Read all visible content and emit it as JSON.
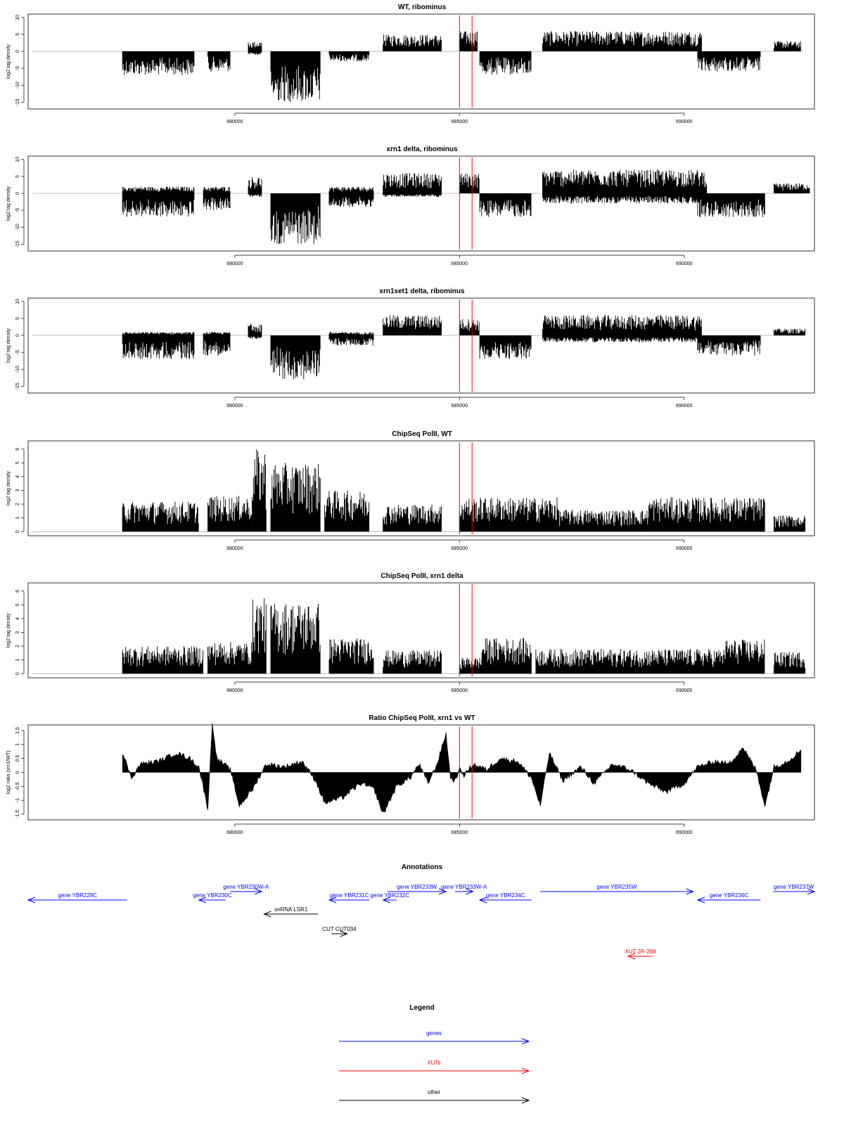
{
  "chart_data": [
    {
      "type": "bar",
      "title": "WT, ribominus",
      "ylabel": "log2 tag density",
      "ylim": [
        -17,
        11
      ],
      "yticks": [
        10,
        5,
        0,
        -5,
        -10,
        -15
      ],
      "xlim": [
        675400,
        692900
      ],
      "xticks": [
        680000,
        685000,
        690000
      ],
      "marker_lines": [
        685000,
        685280
      ],
      "segments": [
        {
          "start": 677500,
          "end": 679100,
          "lo": -7,
          "hi": 0
        },
        {
          "start": 679400,
          "end": 679900,
          "lo": -6,
          "hi": 0
        },
        {
          "start": 680300,
          "end": 680600,
          "lo": -1,
          "hi": 3
        },
        {
          "start": 680800,
          "end": 681900,
          "lo": -15,
          "hi": 0
        },
        {
          "start": 682100,
          "end": 683000,
          "lo": -3,
          "hi": 0
        },
        {
          "start": 683300,
          "end": 684600,
          "lo": 0,
          "hi": 5
        },
        {
          "start": 685000,
          "end": 685400,
          "lo": 0,
          "hi": 6
        },
        {
          "start": 685450,
          "end": 686600,
          "lo": -7,
          "hi": 0
        },
        {
          "start": 686850,
          "end": 690400,
          "lo": 0,
          "hi": 6
        },
        {
          "start": 690300,
          "end": 691700,
          "lo": -6,
          "hi": 0
        },
        {
          "start": 692000,
          "end": 692600,
          "lo": 0,
          "hi": 3
        }
      ]
    },
    {
      "type": "bar",
      "title": "xrn1 delta, ribominus",
      "ylabel": "log2 tag density",
      "ylim": [
        -17,
        11
      ],
      "yticks": [
        10,
        5,
        0,
        -5,
        -10,
        -15
      ],
      "xlim": [
        675400,
        692900
      ],
      "xticks": [
        680000,
        685000,
        690000
      ],
      "marker_lines": [
        685000,
        685280
      ],
      "segments": [
        {
          "start": 677500,
          "end": 679100,
          "lo": -7,
          "hi": 2
        },
        {
          "start": 679300,
          "end": 679900,
          "lo": -5,
          "hi": 2
        },
        {
          "start": 680300,
          "end": 680600,
          "lo": -1,
          "hi": 5
        },
        {
          "start": 680800,
          "end": 681900,
          "lo": -15,
          "hi": 0
        },
        {
          "start": 682100,
          "end": 683100,
          "lo": -4,
          "hi": 2
        },
        {
          "start": 683300,
          "end": 684600,
          "lo": -1,
          "hi": 6
        },
        {
          "start": 685000,
          "end": 685450,
          "lo": 0,
          "hi": 6
        },
        {
          "start": 685450,
          "end": 686600,
          "lo": -7,
          "hi": 0
        },
        {
          "start": 686850,
          "end": 690500,
          "lo": -3,
          "hi": 7
        },
        {
          "start": 690300,
          "end": 691800,
          "lo": -7,
          "hi": 0
        },
        {
          "start": 692000,
          "end": 692800,
          "lo": 0,
          "hi": 3
        }
      ]
    },
    {
      "type": "bar",
      "title": "xrn1set1 delta, ribominus",
      "ylabel": "log2 tag density",
      "ylim": [
        -17,
        11
      ],
      "yticks": [
        10,
        5,
        0,
        -5,
        -10,
        -15
      ],
      "xlim": [
        675400,
        692900
      ],
      "xticks": [
        680000,
        685000,
        690000
      ],
      "marker_lines": [
        685000,
        685280
      ],
      "segments": [
        {
          "start": 677500,
          "end": 679100,
          "lo": -7,
          "hi": 1
        },
        {
          "start": 679300,
          "end": 679900,
          "lo": -6,
          "hi": 1
        },
        {
          "start": 680300,
          "end": 680600,
          "lo": -1,
          "hi": 4
        },
        {
          "start": 680800,
          "end": 681900,
          "lo": -13,
          "hi": 0
        },
        {
          "start": 682100,
          "end": 683100,
          "lo": -3,
          "hi": 1
        },
        {
          "start": 683300,
          "end": 684600,
          "lo": 0,
          "hi": 6
        },
        {
          "start": 685000,
          "end": 685450,
          "lo": 0,
          "hi": 5
        },
        {
          "start": 685450,
          "end": 686600,
          "lo": -7,
          "hi": 0
        },
        {
          "start": 686850,
          "end": 690400,
          "lo": -2,
          "hi": 6
        },
        {
          "start": 690300,
          "end": 691700,
          "lo": -6,
          "hi": 0
        },
        {
          "start": 692000,
          "end": 692700,
          "lo": 0,
          "hi": 2
        }
      ]
    },
    {
      "type": "bar",
      "title": "ChipSeq PolII, WT",
      "ylabel": "log2 tag density",
      "ylim": [
        -0.3,
        6.6
      ],
      "yticks": [
        0,
        1,
        2,
        3,
        4,
        5,
        6
      ],
      "xlim": [
        675400,
        692900
      ],
      "xticks": [
        680000,
        685000,
        690000
      ],
      "marker_lines": [
        685000,
        685280
      ],
      "segments": [
        {
          "start": 677500,
          "end": 679200,
          "lo": 0,
          "hi": 2.2
        },
        {
          "start": 679400,
          "end": 680400,
          "lo": 0,
          "hi": 2.6
        },
        {
          "start": 680400,
          "end": 680700,
          "lo": 0,
          "hi": 6
        },
        {
          "start": 680800,
          "end": 681900,
          "lo": 0,
          "hi": 5
        },
        {
          "start": 682000,
          "end": 683000,
          "lo": 0,
          "hi": 3
        },
        {
          "start": 683300,
          "end": 684600,
          "lo": 0,
          "hi": 2
        },
        {
          "start": 685000,
          "end": 687200,
          "lo": 0,
          "hi": 2.5
        },
        {
          "start": 687200,
          "end": 689200,
          "lo": 0,
          "hi": 1.6
        },
        {
          "start": 689200,
          "end": 691800,
          "lo": 0,
          "hi": 2.5
        },
        {
          "start": 692000,
          "end": 692700,
          "lo": 0,
          "hi": 1.2
        }
      ]
    },
    {
      "type": "bar",
      "title": "ChipSeq PolII, xrn1 delta",
      "ylabel": "log2 tag density",
      "ylim": [
        -0.3,
        6.6
      ],
      "yticks": [
        0,
        1,
        2,
        3,
        4,
        5,
        6
      ],
      "xlim": [
        675400,
        692900
      ],
      "xticks": [
        680000,
        685000,
        690000
      ],
      "marker_lines": [
        685000,
        685280
      ],
      "segments": [
        {
          "start": 677500,
          "end": 679300,
          "lo": 0,
          "hi": 2
        },
        {
          "start": 679400,
          "end": 680400,
          "lo": 0,
          "hi": 2.3
        },
        {
          "start": 680400,
          "end": 680700,
          "lo": 0,
          "hi": 5.5
        },
        {
          "start": 680800,
          "end": 681900,
          "lo": 0,
          "hi": 5.2
        },
        {
          "start": 682100,
          "end": 683100,
          "lo": 0,
          "hi": 2.6
        },
        {
          "start": 683300,
          "end": 684600,
          "lo": 0,
          "hi": 1.7
        },
        {
          "start": 685000,
          "end": 685500,
          "lo": 0,
          "hi": 1.2
        },
        {
          "start": 685500,
          "end": 686600,
          "lo": 0,
          "hi": 2.6
        },
        {
          "start": 686700,
          "end": 690900,
          "lo": 0,
          "hi": 1.8
        },
        {
          "start": 690900,
          "end": 691800,
          "lo": 0,
          "hi": 2.5
        },
        {
          "start": 692000,
          "end": 692700,
          "lo": 0,
          "hi": 1.6
        }
      ]
    },
    {
      "type": "area",
      "title": "Ratio ChipSeq PolII, xrn1 vs WT",
      "ylabel": "log2 ratio (xrn1/WT)",
      "ylim": [
        -1.7,
        1.7
      ],
      "yticks": [
        1.5,
        1,
        0.5,
        0,
        -0.5,
        -1,
        -1.5
      ],
      "xlim": [
        675400,
        692900
      ],
      "xticks": [
        680000,
        685000,
        690000
      ],
      "marker_lines": [
        685000,
        685280
      ],
      "x": [
        677500,
        677700,
        677900,
        678300,
        678700,
        679000,
        679200,
        679400,
        679500,
        679600,
        679900,
        680100,
        680400,
        680700,
        681100,
        681500,
        681800,
        682000,
        682400,
        682800,
        683100,
        683300,
        683600,
        683900,
        684100,
        684300,
        684500,
        684700,
        684800,
        684900,
        685000,
        685100,
        685300,
        685600,
        685900,
        686300,
        686600,
        686800,
        687000,
        687300,
        687700,
        688000,
        688400,
        688800,
        689200,
        689600,
        690000,
        690300,
        690700,
        691000,
        691300,
        691600,
        691800,
        692000,
        692300,
        692600
      ],
      "y": [
        0.7,
        -0.2,
        0.3,
        0.4,
        0.7,
        0.5,
        0.2,
        -1.3,
        1.8,
        0.5,
        0.1,
        -1.2,
        -0.6,
        0.3,
        0.2,
        0.4,
        -0.3,
        -1.1,
        -0.9,
        -0.4,
        -0.6,
        -1.5,
        -0.5,
        -0.2,
        0.3,
        -0.4,
        0.3,
        1.4,
        -0.2,
        -0.3,
        0.1,
        -0.1,
        0.3,
        0.1,
        0.5,
        0.4,
        -0.2,
        -1.2,
        0.7,
        -0.3,
        0.2,
        -0.4,
        0.3,
        0.1,
        -0.4,
        -0.7,
        -0.4,
        0.2,
        0.4,
        0.3,
        0.9,
        0.1,
        -1.2,
        0.2,
        0.4,
        0.8
      ]
    }
  ],
  "annotations": {
    "title": "Annotations",
    "features": [
      {
        "label": "gene YBR229C",
        "start": 675400,
        "end": 677600,
        "strand": "-",
        "row": 1,
        "kind": "gene"
      },
      {
        "label": "gene YBR230C",
        "start": 679200,
        "end": 679800,
        "strand": "-",
        "row": 1,
        "kind": "gene"
      },
      {
        "label": "gene YBR230W-A",
        "start": 679900,
        "end": 680600,
        "strand": "+",
        "row": 0,
        "kind": "gene"
      },
      {
        "label": "snRNA LSR1",
        "start": 680650,
        "end": 681850,
        "strand": "-",
        "row": 2,
        "kind": "other"
      },
      {
        "label": "gene YBR231C",
        "start": 682100,
        "end": 683000,
        "strand": "-",
        "row": 1,
        "kind": "gene"
      },
      {
        "label": "CUT CUT034",
        "start": 682150,
        "end": 682500,
        "strand": "+",
        "row": 3,
        "kind": "other"
      },
      {
        "label": "gene YBR232C",
        "start": 683300,
        "end": 683600,
        "strand": "-",
        "row": 1,
        "kind": "gene"
      },
      {
        "label": "gene YBR233W",
        "start": 683400,
        "end": 684700,
        "strand": "+",
        "row": 0,
        "kind": "gene"
      },
      {
        "label": "gene YBR233W-A",
        "start": 684900,
        "end": 685300,
        "strand": "+",
        "row": 0,
        "kind": "gene"
      },
      {
        "label": "gene YBR234C",
        "start": 685450,
        "end": 686600,
        "strand": "-",
        "row": 1,
        "kind": "gene"
      },
      {
        "label": "gene YBR235W",
        "start": 686800,
        "end": 690200,
        "strand": "+",
        "row": 0,
        "kind": "gene"
      },
      {
        "label": "gene YBR236C",
        "start": 690300,
        "end": 691700,
        "strand": "-",
        "row": 1,
        "kind": "gene"
      },
      {
        "label": "gene YBR237W",
        "start": 691980,
        "end": 692900,
        "strand": "+",
        "row": 0,
        "kind": "gene"
      },
      {
        "label": "XUT 2R-288",
        "start": 688750,
        "end": 689300,
        "strand": "-",
        "row": 4,
        "kind": "xut"
      }
    ]
  },
  "legend": {
    "title": "Legend",
    "items": [
      {
        "label": "genes",
        "color": "#0000ff"
      },
      {
        "label": "XUTs",
        "color": "#ff0000"
      },
      {
        "label": "other",
        "color": "#000000"
      }
    ]
  },
  "colors": {
    "gene": "#0000ff",
    "xut": "#ff0000",
    "other": "#000000",
    "marker": "#ff0000",
    "zero_line": "#bebebe"
  }
}
